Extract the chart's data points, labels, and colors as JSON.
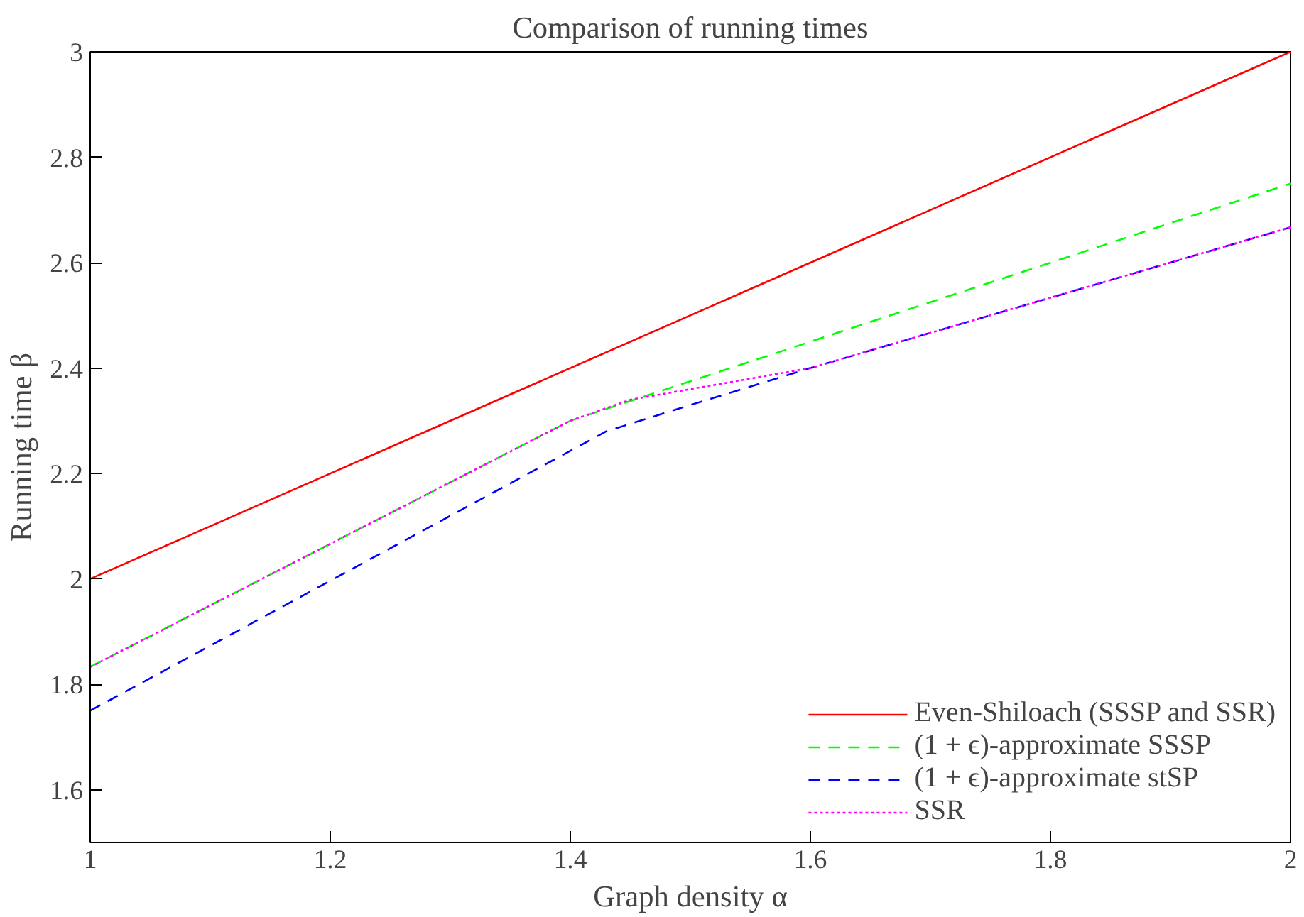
{
  "chart_data": {
    "type": "line",
    "title": "Comparison of running times",
    "xlabel": "Graph density α",
    "ylabel": "Running time β",
    "xlim": [
      1,
      2
    ],
    "ylim": [
      1.5,
      3
    ],
    "xticks": [
      1,
      1.2,
      1.4,
      1.6,
      1.8,
      2
    ],
    "yticks": [
      1.6,
      1.8,
      2,
      2.2,
      2.4,
      2.6,
      2.8,
      3
    ],
    "grid": false,
    "legend": "bottom right",
    "series": [
      {
        "name": "Even-Shiloach (SSSP and SSR)",
        "color": "#ff0000",
        "line_style": "solid",
        "x": [
          1,
          2
        ],
        "values": [
          2,
          3
        ]
      },
      {
        "name": "(1 + ϵ)-approximate SSSP",
        "color": "#00ff00",
        "line_style": "dashed",
        "x": [
          1,
          1.4,
          2
        ],
        "values": [
          1.833,
          2.3,
          2.75
        ]
      },
      {
        "name": "(1 + ϵ)-approximate stSP",
        "color": "#0000ff",
        "line_style": "dashed",
        "x": [
          1,
          1.43,
          1.5,
          1.6,
          2
        ],
        "values": [
          1.75,
          2.28,
          2.33,
          2.4,
          2.667
        ]
      },
      {
        "name": "SSR",
        "color": "#ff00ff",
        "line_style": "dotted",
        "x": [
          1,
          1.4,
          1.45,
          1.6,
          2
        ],
        "values": [
          1.833,
          2.3,
          2.34,
          2.4,
          2.667
        ]
      }
    ]
  }
}
